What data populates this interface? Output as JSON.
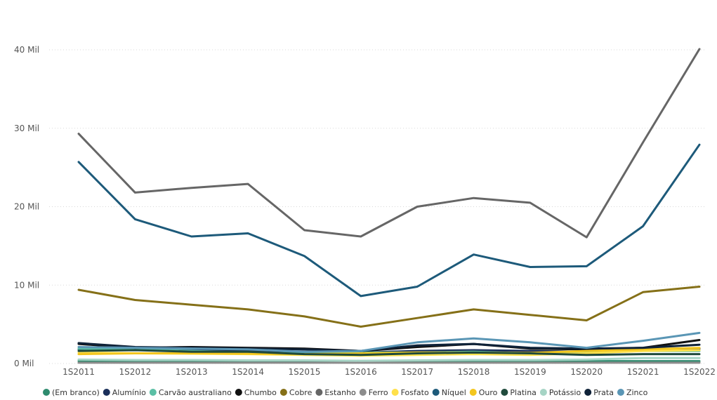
{
  "chart_data": {
    "type": "line",
    "categories": [
      "1S2011",
      "1S2012",
      "1S2013",
      "1S2014",
      "1S2015",
      "1S2016",
      "1S2017",
      "1S2018",
      "1S2019",
      "1S2020",
      "1S2021",
      "1S2022"
    ],
    "y_ticks": [
      {
        "value": 0,
        "label": "0 Mil"
      },
      {
        "value": 10000,
        "label": "10 Mil"
      },
      {
        "value": 20000,
        "label": "20 Mil"
      },
      {
        "value": 30000,
        "label": "30 Mil"
      },
      {
        "value": 40000,
        "label": "40 Mil"
      }
    ],
    "ylim": [
      0,
      40000
    ],
    "grid": true,
    "legend_position": "bottom",
    "series": [
      {
        "name": "(Em branco)",
        "color": "#2e8b6e",
        "values": [
          300,
          300,
          300,
          300,
          300,
          300,
          300,
          300,
          300,
          300,
          300,
          300
        ]
      },
      {
        "name": "Alumínio",
        "color": "#1a2f5a",
        "values": [
          1800,
          1700,
          1700,
          1600,
          1500,
          1400,
          1600,
          1700,
          1600,
          1500,
          1700,
          1900
        ]
      },
      {
        "name": "Carvão australiano",
        "color": "#5bbfa5",
        "values": [
          1900,
          1800,
          1600,
          1400,
          1300,
          1400,
          1400,
          1500,
          1300,
          1400,
          1600,
          1600
        ]
      },
      {
        "name": "Chumbo",
        "color": "#111111",
        "values": [
          2500,
          2000,
          2100,
          2000,
          1900,
          1600,
          2100,
          2500,
          1900,
          1800,
          2000,
          3000
        ]
      },
      {
        "name": "Cobre",
        "color": "#857018",
        "values": [
          9400,
          8100,
          7500,
          6900,
          6000,
          4700,
          5800,
          6900,
          6200,
          5500,
          9100,
          9800
        ]
      },
      {
        "name": "Estanho",
        "color": "#666666",
        "values": [
          29300,
          21800,
          22400,
          22900,
          17000,
          16200,
          20000,
          21100,
          20500,
          16100,
          28200,
          40100
        ]
      },
      {
        "name": "Ferro",
        "color": "#8c8c8c",
        "values": [
          100,
          100,
          100,
          100,
          100,
          100,
          100,
          100,
          100,
          100,
          100,
          100
        ]
      },
      {
        "name": "Fosfato",
        "color": "#ffe04a",
        "values": [
          1400,
          1300,
          1250,
          1200,
          1100,
          1000,
          1100,
          1200,
          1100,
          1300,
          1600,
          1700
        ]
      },
      {
        "name": "Níquel",
        "color": "#1d5a7a",
        "values": [
          25700,
          18400,
          16200,
          16600,
          13700,
          8600,
          9800,
          13900,
          12300,
          12400,
          17500,
          27900
        ]
      },
      {
        "name": "Ouro",
        "color": "#f3c61e",
        "values": [
          1200,
          1300,
          1300,
          1250,
          1200,
          1300,
          1400,
          1400,
          1350,
          1600,
          1800,
          2000
        ]
      },
      {
        "name": "Platina",
        "color": "#1f4a3c",
        "values": [
          1600,
          1700,
          1500,
          1500,
          1200,
          1100,
          1300,
          1400,
          1300,
          1100,
          1200,
          1200
        ]
      },
      {
        "name": "Potássio",
        "color": "#a6d4c5",
        "values": [
          500,
          450,
          450,
          400,
          400,
          350,
          400,
          450,
          450,
          500,
          700,
          700
        ]
      },
      {
        "name": "Prata",
        "color": "#0f2238",
        "values": [
          2600,
          2100,
          2000,
          1900,
          1800,
          1600,
          2300,
          2500,
          2000,
          1900,
          2000,
          2400
        ]
      },
      {
        "name": "Zinco",
        "color": "#5a96b5",
        "values": [
          2100,
          2000,
          1900,
          1800,
          1500,
          1600,
          2700,
          3200,
          2700,
          2000,
          2900,
          3900
        ]
      }
    ]
  }
}
